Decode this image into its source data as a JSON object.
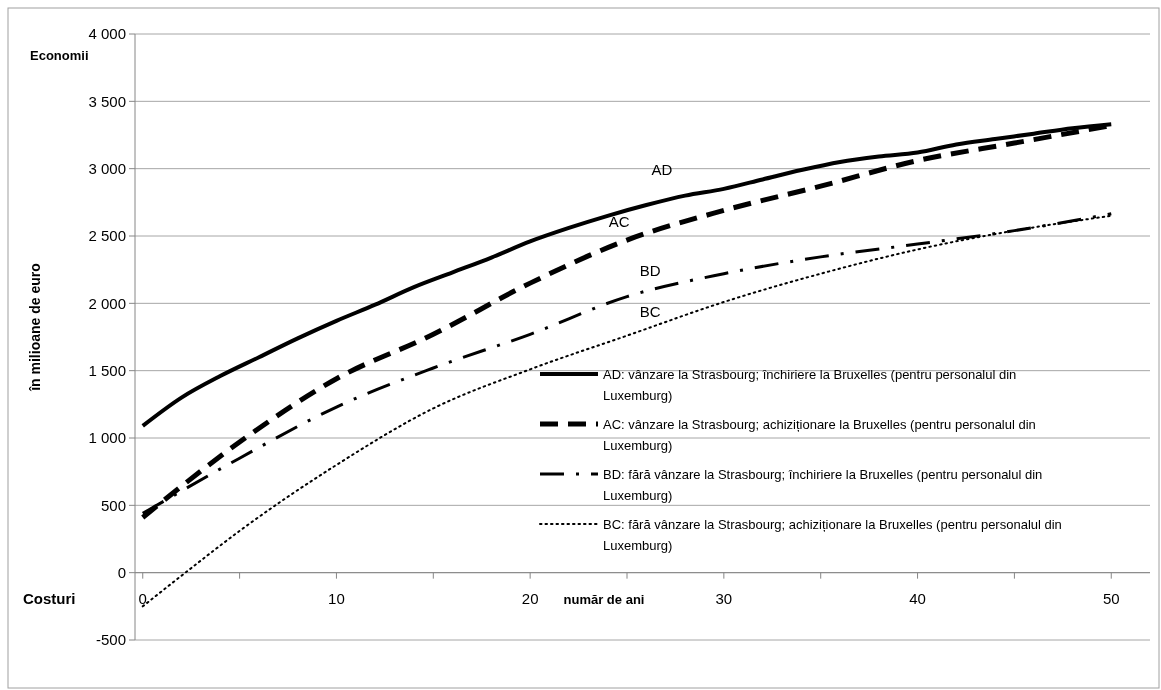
{
  "chart_data": {
    "type": "line",
    "xlabel": "număr de ani",
    "ylabel": "în milioane de euro",
    "annotations": [
      "Economii",
      "Costuri",
      "AD",
      "AC",
      "BD",
      "BC"
    ],
    "x": [
      0,
      2,
      4,
      6,
      8,
      10,
      12,
      14,
      16,
      18,
      20,
      22,
      24,
      26,
      28,
      30,
      32,
      34,
      36,
      38,
      40,
      42,
      44,
      46,
      48,
      50
    ],
    "series": [
      {
        "name": "AD: vânzare la Strasbourg; închiriere la Bruxelles (pentru personalul din Luxemburg)",
        "color": "#000000",
        "line_style": "solid",
        "values": [
          1090,
          1300,
          1460,
          1600,
          1740,
          1870,
          1990,
          2120,
          2230,
          2340,
          2460,
          2560,
          2650,
          2730,
          2800,
          2850,
          2920,
          2990,
          3050,
          3090,
          3120,
          3180,
          3220,
          3260,
          3300,
          3330
        ]
      },
      {
        "name": "AC: vânzare la Strasbourg; achiziționare la Bruxelles (pentru personalul din Luxemburg)",
        "color": "#000000",
        "line_style": "dashed",
        "x": [
          0,
          5,
          10,
          15,
          20,
          25,
          30,
          35,
          40,
          45,
          50
        ],
        "values": [
          410,
          970,
          1440,
          1770,
          2150,
          2470,
          2690,
          2870,
          3060,
          3190,
          3320
        ]
      },
      {
        "name": "BD: fără vânzare la Strasbourg; închiriere la Bruxelles (pentru personalul din Luxemburg)",
        "color": "#000000",
        "line_style": "dashdot",
        "x": [
          0,
          5,
          10,
          15,
          20,
          25,
          30,
          35,
          40,
          45,
          50
        ],
        "values": [
          440,
          850,
          1230,
          1520,
          1770,
          2050,
          2220,
          2345,
          2440,
          2540,
          2665
        ]
      },
      {
        "name": "BC: fără vânzare la Strasbourg; achiziționare la Bruxelles (pentru personalul din Luxemburg)",
        "color": "#000000",
        "line_style": "dotted",
        "x": [
          0,
          2.2,
          5,
          10,
          15,
          20,
          25,
          30,
          35,
          40,
          45,
          50
        ],
        "values": [
          -250,
          0,
          310,
          800,
          1220,
          1510,
          1760,
          2010,
          2220,
          2400,
          2540,
          2650
        ]
      }
    ],
    "xlim": [
      -0.4,
      52
    ],
    "xticks": [
      0,
      {
        "value": 5,
        "label": null
      },
      10,
      {
        "value": 15,
        "label": null
      },
      20,
      {
        "value": 25,
        "label": null
      },
      30,
      {
        "value": 35,
        "label": null
      },
      40,
      {
        "value": 45,
        "label": null
      },
      50
    ],
    "ylim": [
      -500,
      4000
    ],
    "yticks": [
      {
        "value": -500,
        "label": "-500"
      },
      {
        "value": 0,
        "label": "0"
      },
      {
        "value": 500,
        "label": "500"
      },
      {
        "value": 1000,
        "label": "1 000"
      },
      {
        "value": 1500,
        "label": "1 500"
      },
      {
        "value": 2000,
        "label": "2 000"
      },
      {
        "value": 2500,
        "label": "2 500"
      },
      {
        "value": 3000,
        "label": "3 000"
      },
      {
        "value": 3500,
        "label": "3 500"
      },
      {
        "value": 4000,
        "label": "4 000"
      }
    ],
    "grid": "y",
    "legend": "bottom right"
  }
}
